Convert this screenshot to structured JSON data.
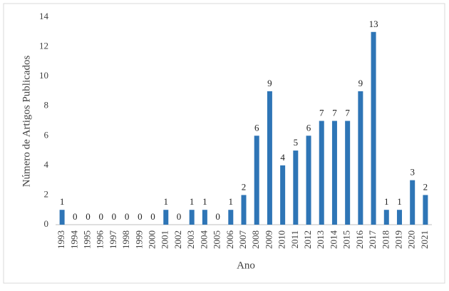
{
  "chart_data": {
    "type": "bar",
    "x_label": "Ano",
    "y_label": "Número de Artigos Publicados",
    "categories": [
      "1993",
      "1994",
      "1995",
      "1996",
      "1997",
      "1998",
      "1999",
      "2000",
      "2001",
      "2002",
      "2003",
      "2004",
      "2005",
      "2006",
      "2007",
      "2008",
      "2009",
      "2010",
      "2011",
      "2012",
      "2013",
      "2014",
      "2015",
      "2016",
      "2017",
      "2018",
      "2019",
      "2020",
      "2021"
    ],
    "values": [
      1,
      0,
      0,
      0,
      0,
      0,
      0,
      0,
      1,
      0,
      1,
      1,
      0,
      1,
      2,
      6,
      9,
      4,
      5,
      6,
      7,
      7,
      7,
      9,
      13,
      1,
      1,
      3,
      2
    ],
    "color": "#2e75b6",
    "ylim": [
      0,
      14
    ],
    "yticks": [
      0,
      2,
      4,
      6,
      8,
      10,
      12,
      14
    ],
    "grid": false
  }
}
